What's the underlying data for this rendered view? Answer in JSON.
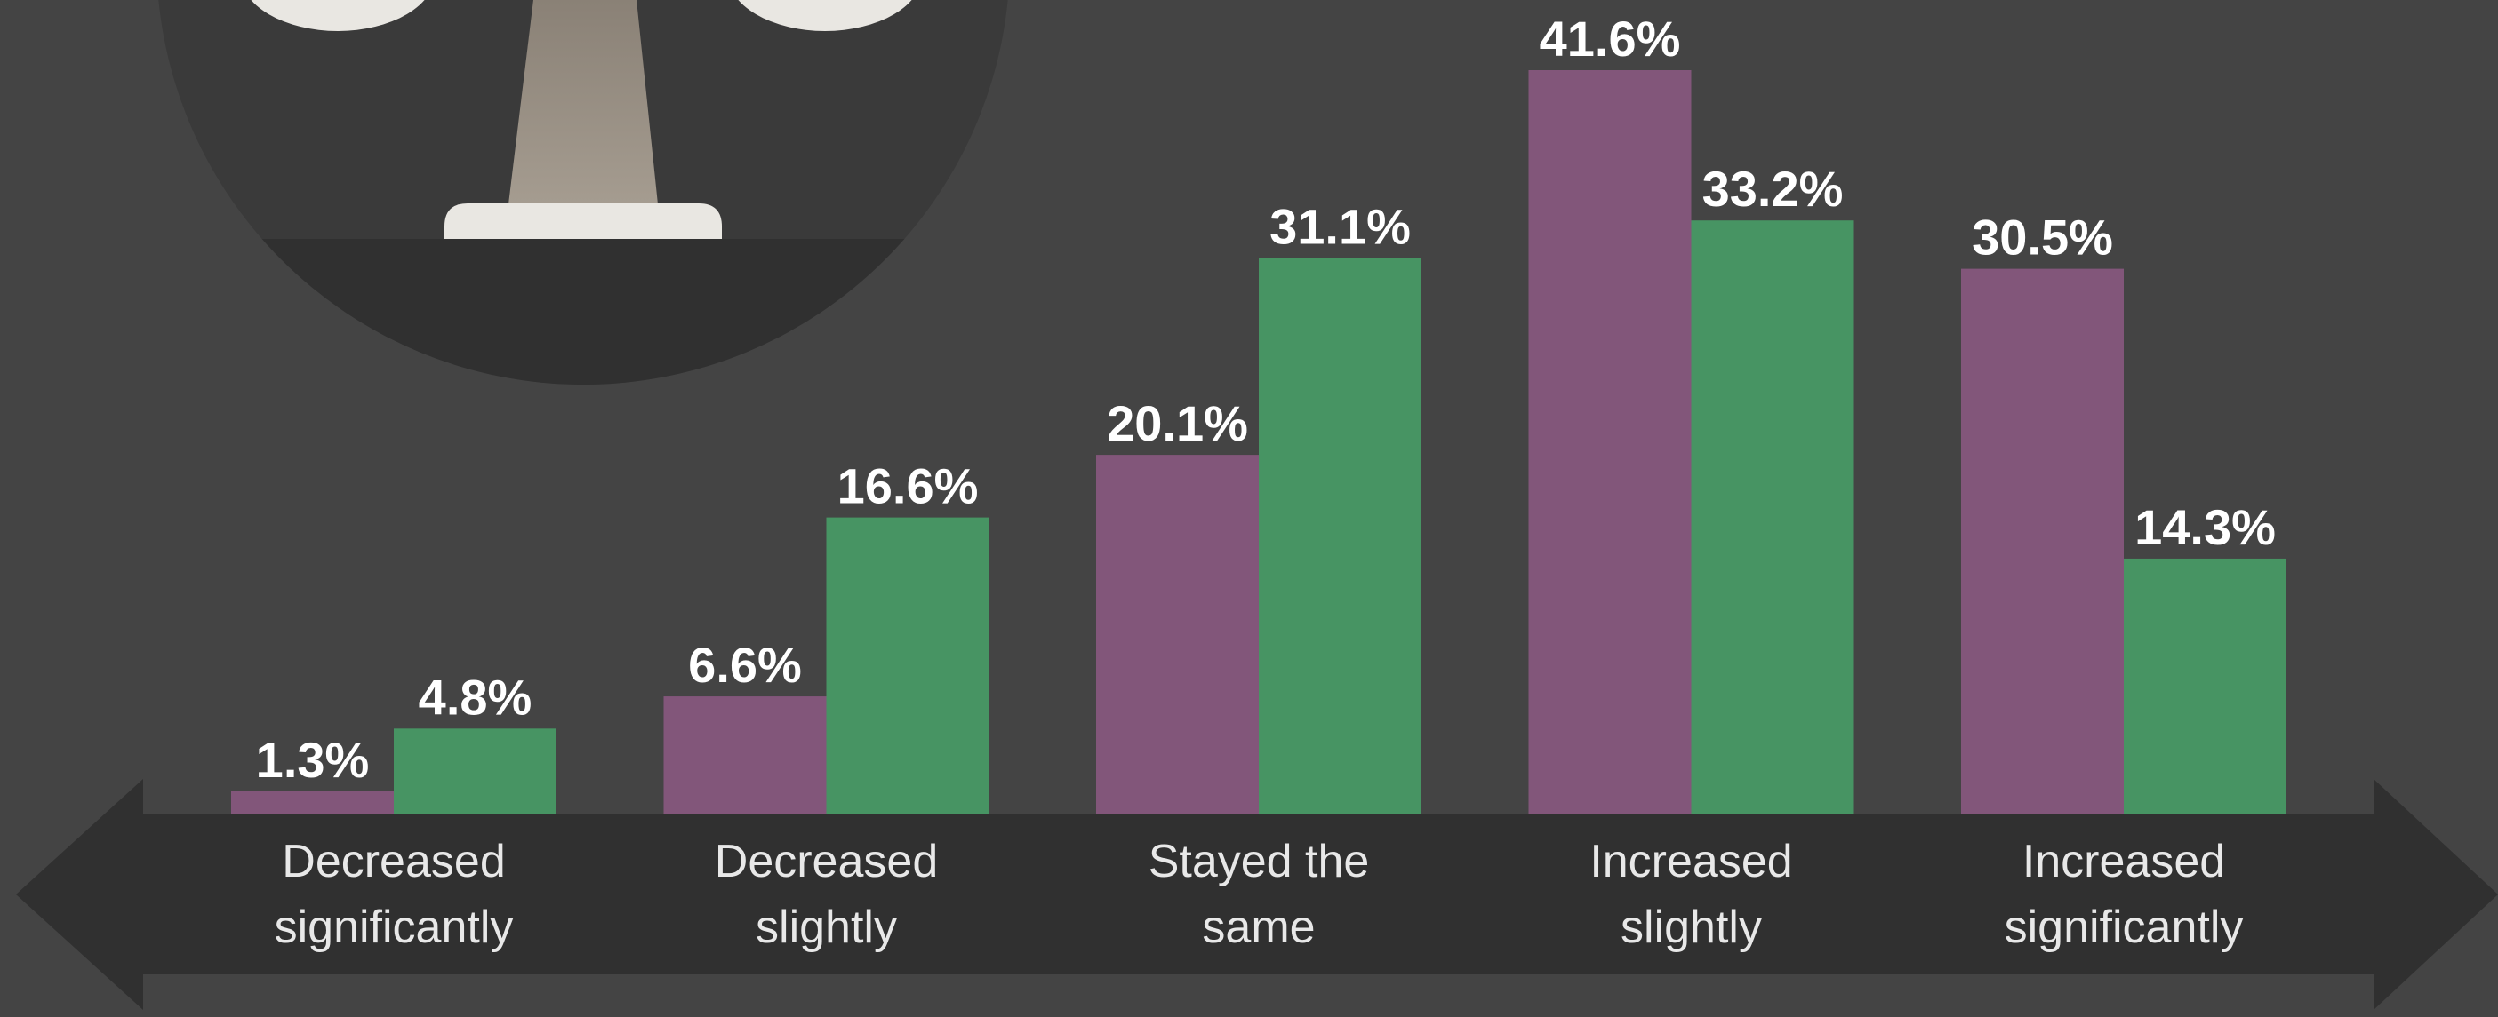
{
  "chart_data": {
    "type": "bar",
    "categories": [
      "Decreased significantly",
      "Decreased slightly",
      "Stayed the same",
      "Increased slightly",
      "Increased significantly"
    ],
    "series": [
      {
        "color": "#82567a",
        "values": [
          1.3,
          6.6,
          20.1,
          41.6,
          30.5
        ],
        "value_labels": [
          "1.3%",
          "6.6%",
          "20.1%",
          "41.6%",
          "30.5%"
        ]
      },
      {
        "color": "#479463",
        "values": [
          4.8,
          16.6,
          31.1,
          33.2,
          14.3
        ],
        "value_labels": [
          "4.8%",
          "16.6%",
          "31.1%",
          "33.2%",
          "14.3%"
        ]
      }
    ]
  }
}
